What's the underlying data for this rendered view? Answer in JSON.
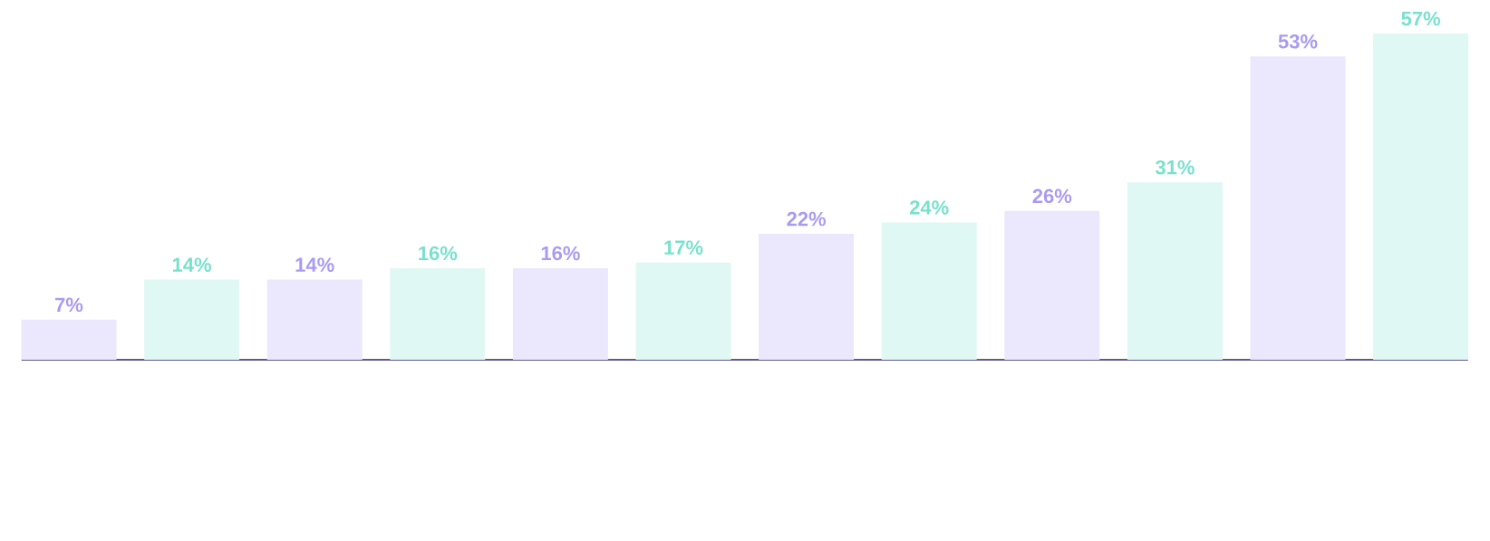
{
  "chart_data": {
    "type": "bar",
    "categories": [
      null,
      null,
      null,
      null,
      null,
      null,
      null,
      null,
      null,
      null,
      null,
      null
    ],
    "values": [
      7,
      14,
      14,
      16,
      16,
      17,
      22,
      24,
      26,
      31,
      53,
      57
    ],
    "value_labels": [
      "7%",
      "14%",
      "14%",
      "16%",
      "16%",
      "17%",
      "22%",
      "24%",
      "26%",
      "31%",
      "53%",
      "57%"
    ],
    "colors": [
      "#ebe7fc",
      "#dff8f3",
      "#ebe7fc",
      "#dff8f3",
      "#ebe7fc",
      "#dff8f3",
      "#ebe7fc",
      "#dff8f3",
      "#ebe7fc",
      "#dff8f3",
      "#ebe7fc",
      "#dff8f3"
    ]
  }
}
